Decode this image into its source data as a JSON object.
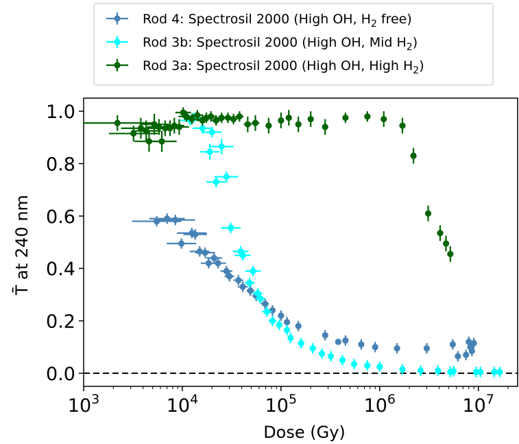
{
  "chart_data": {
    "type": "scatter",
    "xlabel": "Dose (Gy)",
    "ylabel": "T̄ at 240 nm",
    "xscale": "log",
    "xlim": [
      1000,
      25000000
    ],
    "ylim": [
      -0.05,
      1.05
    ],
    "x_ticks": [
      {
        "value": 1000,
        "base": "10",
        "exp": "3"
      },
      {
        "value": 10000,
        "base": "10",
        "exp": "4"
      },
      {
        "value": 100000,
        "base": "10",
        "exp": "5"
      },
      {
        "value": 1000000,
        "base": "10",
        "exp": "6"
      },
      {
        "value": 10000000,
        "base": "10",
        "exp": "7"
      }
    ],
    "y_ticks": [
      {
        "value": 0.0,
        "label": "0.0"
      },
      {
        "value": 0.2,
        "label": "0.2"
      },
      {
        "value": 0.4,
        "label": "0.4"
      },
      {
        "value": 0.6,
        "label": "0.6"
      },
      {
        "value": 0.8,
        "label": "0.8"
      },
      {
        "value": 1.0,
        "label": "1.0"
      }
    ],
    "reference_line": {
      "y": 0.0,
      "style": "dashed",
      "color": "#000000"
    },
    "grid": false,
    "legend_position": "top-center, above plot",
    "series": [
      {
        "name": "Rod 4: Spectrosil 2000 (High OH, H",
        "name_sub": "2",
        "name_tail": " free)",
        "color": "#4682b4",
        "points": [
          [
            5500,
            0.58,
            0.25,
            0.02
          ],
          [
            7000,
            0.59,
            0.18,
            0.02
          ],
          [
            8500,
            0.585,
            0.2,
            0.02
          ],
          [
            9800,
            0.495,
            0.15,
            0.02
          ],
          [
            12500,
            0.535,
            0.15,
            0.02
          ],
          [
            13500,
            0.53,
            0.12,
            0.02
          ],
          [
            15000,
            0.465,
            0.1,
            0.02
          ],
          [
            17000,
            0.46,
            0.1,
            0.02
          ],
          [
            18500,
            0.42,
            0.08,
            0.02
          ],
          [
            21000,
            0.44,
            0.08,
            0.02
          ],
          [
            23000,
            0.42,
            0.08,
            0.02
          ],
          [
            28000,
            0.39,
            0.06,
            0.02
          ],
          [
            30000,
            0.37,
            0.05,
            0.02
          ],
          [
            37000,
            0.355,
            0.05,
            0.02
          ],
          [
            41000,
            0.33,
            0.05,
            0.02
          ],
          [
            49000,
            0.315,
            0.04,
            0.02
          ],
          [
            56000,
            0.295,
            0.04,
            0.02
          ],
          [
            69000,
            0.265,
            0.04,
            0.02
          ],
          [
            82000,
            0.24,
            0.03,
            0.02
          ],
          [
            100000,
            0.22,
            0.03,
            0.02
          ],
          [
            115000,
            0.195,
            0.02,
            0.02
          ],
          [
            150000,
            0.18,
            0.02,
            0.02
          ],
          [
            280000,
            0.145,
            0.02,
            0.02
          ],
          [
            380000,
            0.12,
            0.02,
            0.01
          ],
          [
            450000,
            0.125,
            0.02,
            0.02
          ],
          [
            650000,
            0.11,
            0.02,
            0.02
          ],
          [
            900000,
            0.1,
            0.02,
            0.02
          ],
          [
            1500000,
            0.095,
            0.02,
            0.02
          ],
          [
            3000000,
            0.095,
            0.02,
            0.02
          ],
          [
            5500000,
            0.11,
            0.02,
            0.02
          ],
          [
            6200000,
            0.065,
            0.02,
            0.02
          ],
          [
            7500000,
            0.07,
            0.02,
            0.02
          ],
          [
            8000000,
            0.12,
            0.02,
            0.02
          ],
          [
            8300000,
            0.1,
            0.02,
            0.02
          ],
          [
            8600000,
            0.085,
            0.02,
            0.02
          ],
          [
            9000000,
            0.115,
            0.02,
            0.02
          ]
        ]
      },
      {
        "name": "Rod 3b: Spectrosil 2000 (High OH, Mid H",
        "name_sub": "2",
        "name_tail": ")",
        "color": "#00ffff",
        "points": [
          [
            12000,
            0.965,
            0.1,
            0.02
          ],
          [
            13000,
            0.975,
            0.1,
            0.02
          ],
          [
            16000,
            0.935,
            0.1,
            0.02
          ],
          [
            20000,
            0.92,
            0.1,
            0.02
          ],
          [
            19000,
            0.845,
            0.1,
            0.03
          ],
          [
            25000,
            0.865,
            0.12,
            0.03
          ],
          [
            22000,
            0.73,
            0.1,
            0.02
          ],
          [
            28000,
            0.75,
            0.12,
            0.02
          ],
          [
            31000,
            0.555,
            0.1,
            0.02
          ],
          [
            39000,
            0.465,
            0.08,
            0.02
          ],
          [
            41000,
            0.45,
            0.08,
            0.02
          ],
          [
            52000,
            0.39,
            0.08,
            0.02
          ],
          [
            48000,
            0.345,
            0.05,
            0.02
          ],
          [
            58000,
            0.305,
            0.05,
            0.02
          ],
          [
            62000,
            0.285,
            0.05,
            0.02
          ],
          [
            72000,
            0.235,
            0.05,
            0.02
          ],
          [
            82000,
            0.2,
            0.04,
            0.02
          ],
          [
            96000,
            0.185,
            0.03,
            0.02
          ],
          [
            115000,
            0.165,
            0.03,
            0.02
          ],
          [
            125000,
            0.135,
            0.03,
            0.02
          ],
          [
            160000,
            0.115,
            0.03,
            0.02
          ],
          [
            210000,
            0.095,
            0.03,
            0.02
          ],
          [
            260000,
            0.075,
            0.03,
            0.02
          ],
          [
            320000,
            0.065,
            0.03,
            0.02
          ],
          [
            420000,
            0.05,
            0.03,
            0.02
          ],
          [
            550000,
            0.035,
            0.03,
            0.02
          ],
          [
            750000,
            0.03,
            0.03,
            0.02
          ],
          [
            1000000,
            0.025,
            0.03,
            0.02
          ],
          [
            1700000,
            0.015,
            0.02,
            0.02
          ],
          [
            2600000,
            0.01,
            0.02,
            0.02
          ],
          [
            3900000,
            0.01,
            0.02,
            0.02
          ],
          [
            5200000,
            0.005,
            0.02,
            0.02
          ],
          [
            5600000,
            0.008,
            0.02,
            0.02
          ],
          [
            9500000,
            0.005,
            0.02,
            0.02
          ],
          [
            10500000,
            0.005,
            0.02,
            0.02
          ],
          [
            14500000,
            0.005,
            0.02,
            0.02
          ],
          [
            16500000,
            0.005,
            0.02,
            0.02
          ]
        ]
      },
      {
        "name": "Rod 3a: Spectrosil 2000 (High OH, High H",
        "name_sub": "2",
        "name_tail": ")",
        "color": "#006400",
        "points": [
          [
            2200,
            0.955,
            0.35,
            0.03
          ],
          [
            3200,
            0.915,
            0.25,
            0.03
          ],
          [
            3800,
            0.935,
            0.2,
            0.04
          ],
          [
            4300,
            0.925,
            0.15,
            0.04
          ],
          [
            4600,
            0.885,
            0.15,
            0.04
          ],
          [
            5200,
            0.95,
            0.15,
            0.04
          ],
          [
            5800,
            0.94,
            0.12,
            0.03
          ],
          [
            6200,
            0.885,
            0.15,
            0.04
          ],
          [
            6700,
            0.935,
            0.12,
            0.03
          ],
          [
            7500,
            0.935,
            0.12,
            0.03
          ],
          [
            8300,
            0.945,
            0.1,
            0.03
          ],
          [
            9300,
            0.94,
            0.1,
            0.03
          ],
          [
            10200,
            0.995,
            0.08,
            0.02
          ],
          [
            11000,
            0.98,
            0.08,
            0.02
          ],
          [
            12500,
            0.97,
            0.08,
            0.02
          ],
          [
            14200,
            0.985,
            0.06,
            0.02
          ],
          [
            16000,
            0.965,
            0.06,
            0.02
          ],
          [
            17500,
            0.975,
            0.06,
            0.02
          ],
          [
            19500,
            0.98,
            0.05,
            0.02
          ],
          [
            22000,
            0.965,
            0.05,
            0.02
          ],
          [
            25000,
            0.975,
            0.05,
            0.02
          ],
          [
            29000,
            0.975,
            0.05,
            0.02
          ],
          [
            33000,
            0.97,
            0.04,
            0.02
          ],
          [
            38000,
            0.98,
            0.04,
            0.02
          ],
          [
            46000,
            0.95,
            0.04,
            0.03
          ],
          [
            55000,
            0.955,
            0.04,
            0.03
          ],
          [
            75000,
            0.945,
            0.03,
            0.03
          ],
          [
            100000,
            0.965,
            0.03,
            0.03
          ],
          [
            120000,
            0.975,
            0.03,
            0.03
          ],
          [
            150000,
            0.95,
            0.03,
            0.03
          ],
          [
            200000,
            0.97,
            0.03,
            0.03
          ],
          [
            280000,
            0.94,
            0.03,
            0.03
          ],
          [
            450000,
            0.975,
            0.03,
            0.02
          ],
          [
            750000,
            0.98,
            0.03,
            0.02
          ],
          [
            1100000,
            0.97,
            0.03,
            0.03
          ],
          [
            1700000,
            0.945,
            0.03,
            0.03
          ],
          [
            2200000,
            0.83,
            0.03,
            0.03
          ],
          [
            3100000,
            0.61,
            0.03,
            0.03
          ],
          [
            4100000,
            0.535,
            0.03,
            0.03
          ],
          [
            4700000,
            0.495,
            0.03,
            0.03
          ],
          [
            5200000,
            0.455,
            0.03,
            0.03
          ]
        ]
      }
    ]
  }
}
